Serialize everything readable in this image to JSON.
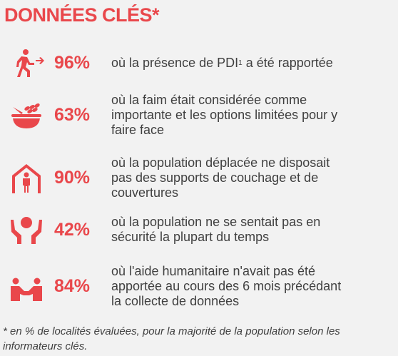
{
  "title": "DONNÉES CLÉS*",
  "items": [
    {
      "value": "96%",
      "text": "où la présence de PDI",
      "footnote_ref": "1",
      "text_after": "a été rapportée"
    },
    {
      "value": "63%",
      "lines": [
        "où la faim était considérée comme",
        "importante et les options limitées pour y",
        "faire face"
      ]
    },
    {
      "value": "90%",
      "lines": [
        "où la population déplacée ne disposait",
        "pas des supports de couchage et de",
        "couvertures"
      ]
    },
    {
      "value": "42%",
      "lines": [
        "où la population ne se sentait pas en",
        "sécurité la plupart du temps"
      ]
    },
    {
      "value": "84%",
      "lines": [
        "où l'aide humanitaire n'avait pas été",
        "apportée au cours des 6 mois précédant",
        "la collecte de données"
      ]
    }
  ],
  "footnote": "* en % de localités évaluées, pour la majorité de la population selon les informateurs clés."
}
